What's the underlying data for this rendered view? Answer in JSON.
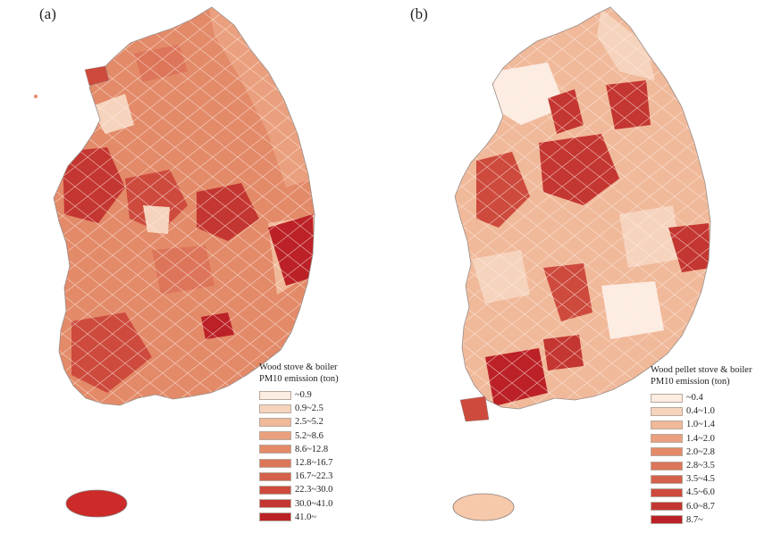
{
  "panel_a": {
    "label": "(a)",
    "legend_title_line1": "Wood stove & boiler",
    "legend_title_line2": "PM10 emission (ton)",
    "classes": [
      {
        "label": "~0.9",
        "color": "#fcece2"
      },
      {
        "label": "0.9~2.5",
        "color": "#f6d3bd"
      },
      {
        "label": "2.5~5.2",
        "color": "#f0b99a"
      },
      {
        "label": "5.2~8.6",
        "color": "#eaa07e"
      },
      {
        "label": "8.6~12.8",
        "color": "#e38a69"
      },
      {
        "label": "12.8~16.7",
        "color": "#dd755a"
      },
      {
        "label": "16.7~22.3",
        "color": "#d5604b"
      },
      {
        "label": "22.3~30.0",
        "color": "#cd4a3d"
      },
      {
        "label": "30.0~41.0",
        "color": "#c43631"
      },
      {
        "label": "41.0~",
        "color": "#bb2127"
      }
    ]
  },
  "panel_b": {
    "label": "(b)",
    "legend_title_line1": "Wood pellet stove & boiler",
    "legend_title_line2": "PM10 emission (ton)",
    "classes": [
      {
        "label": "~0.4",
        "color": "#fcece2"
      },
      {
        "label": "0.4~1.0",
        "color": "#f6d3bd"
      },
      {
        "label": "1.0~1.4",
        "color": "#f0b99a"
      },
      {
        "label": "1.4~2.0",
        "color": "#eaa07e"
      },
      {
        "label": "2.0~2.8",
        "color": "#e38a69"
      },
      {
        "label": "2.8~3.5",
        "color": "#dd755a"
      },
      {
        "label": "3.5~4.5",
        "color": "#d5604b"
      },
      {
        "label": "4.5~6.0",
        "color": "#cd4a3d"
      },
      {
        "label": "6.0~8.7",
        "color": "#c43631"
      },
      {
        "label": "8.7~",
        "color": "#bb2127"
      }
    ]
  }
}
